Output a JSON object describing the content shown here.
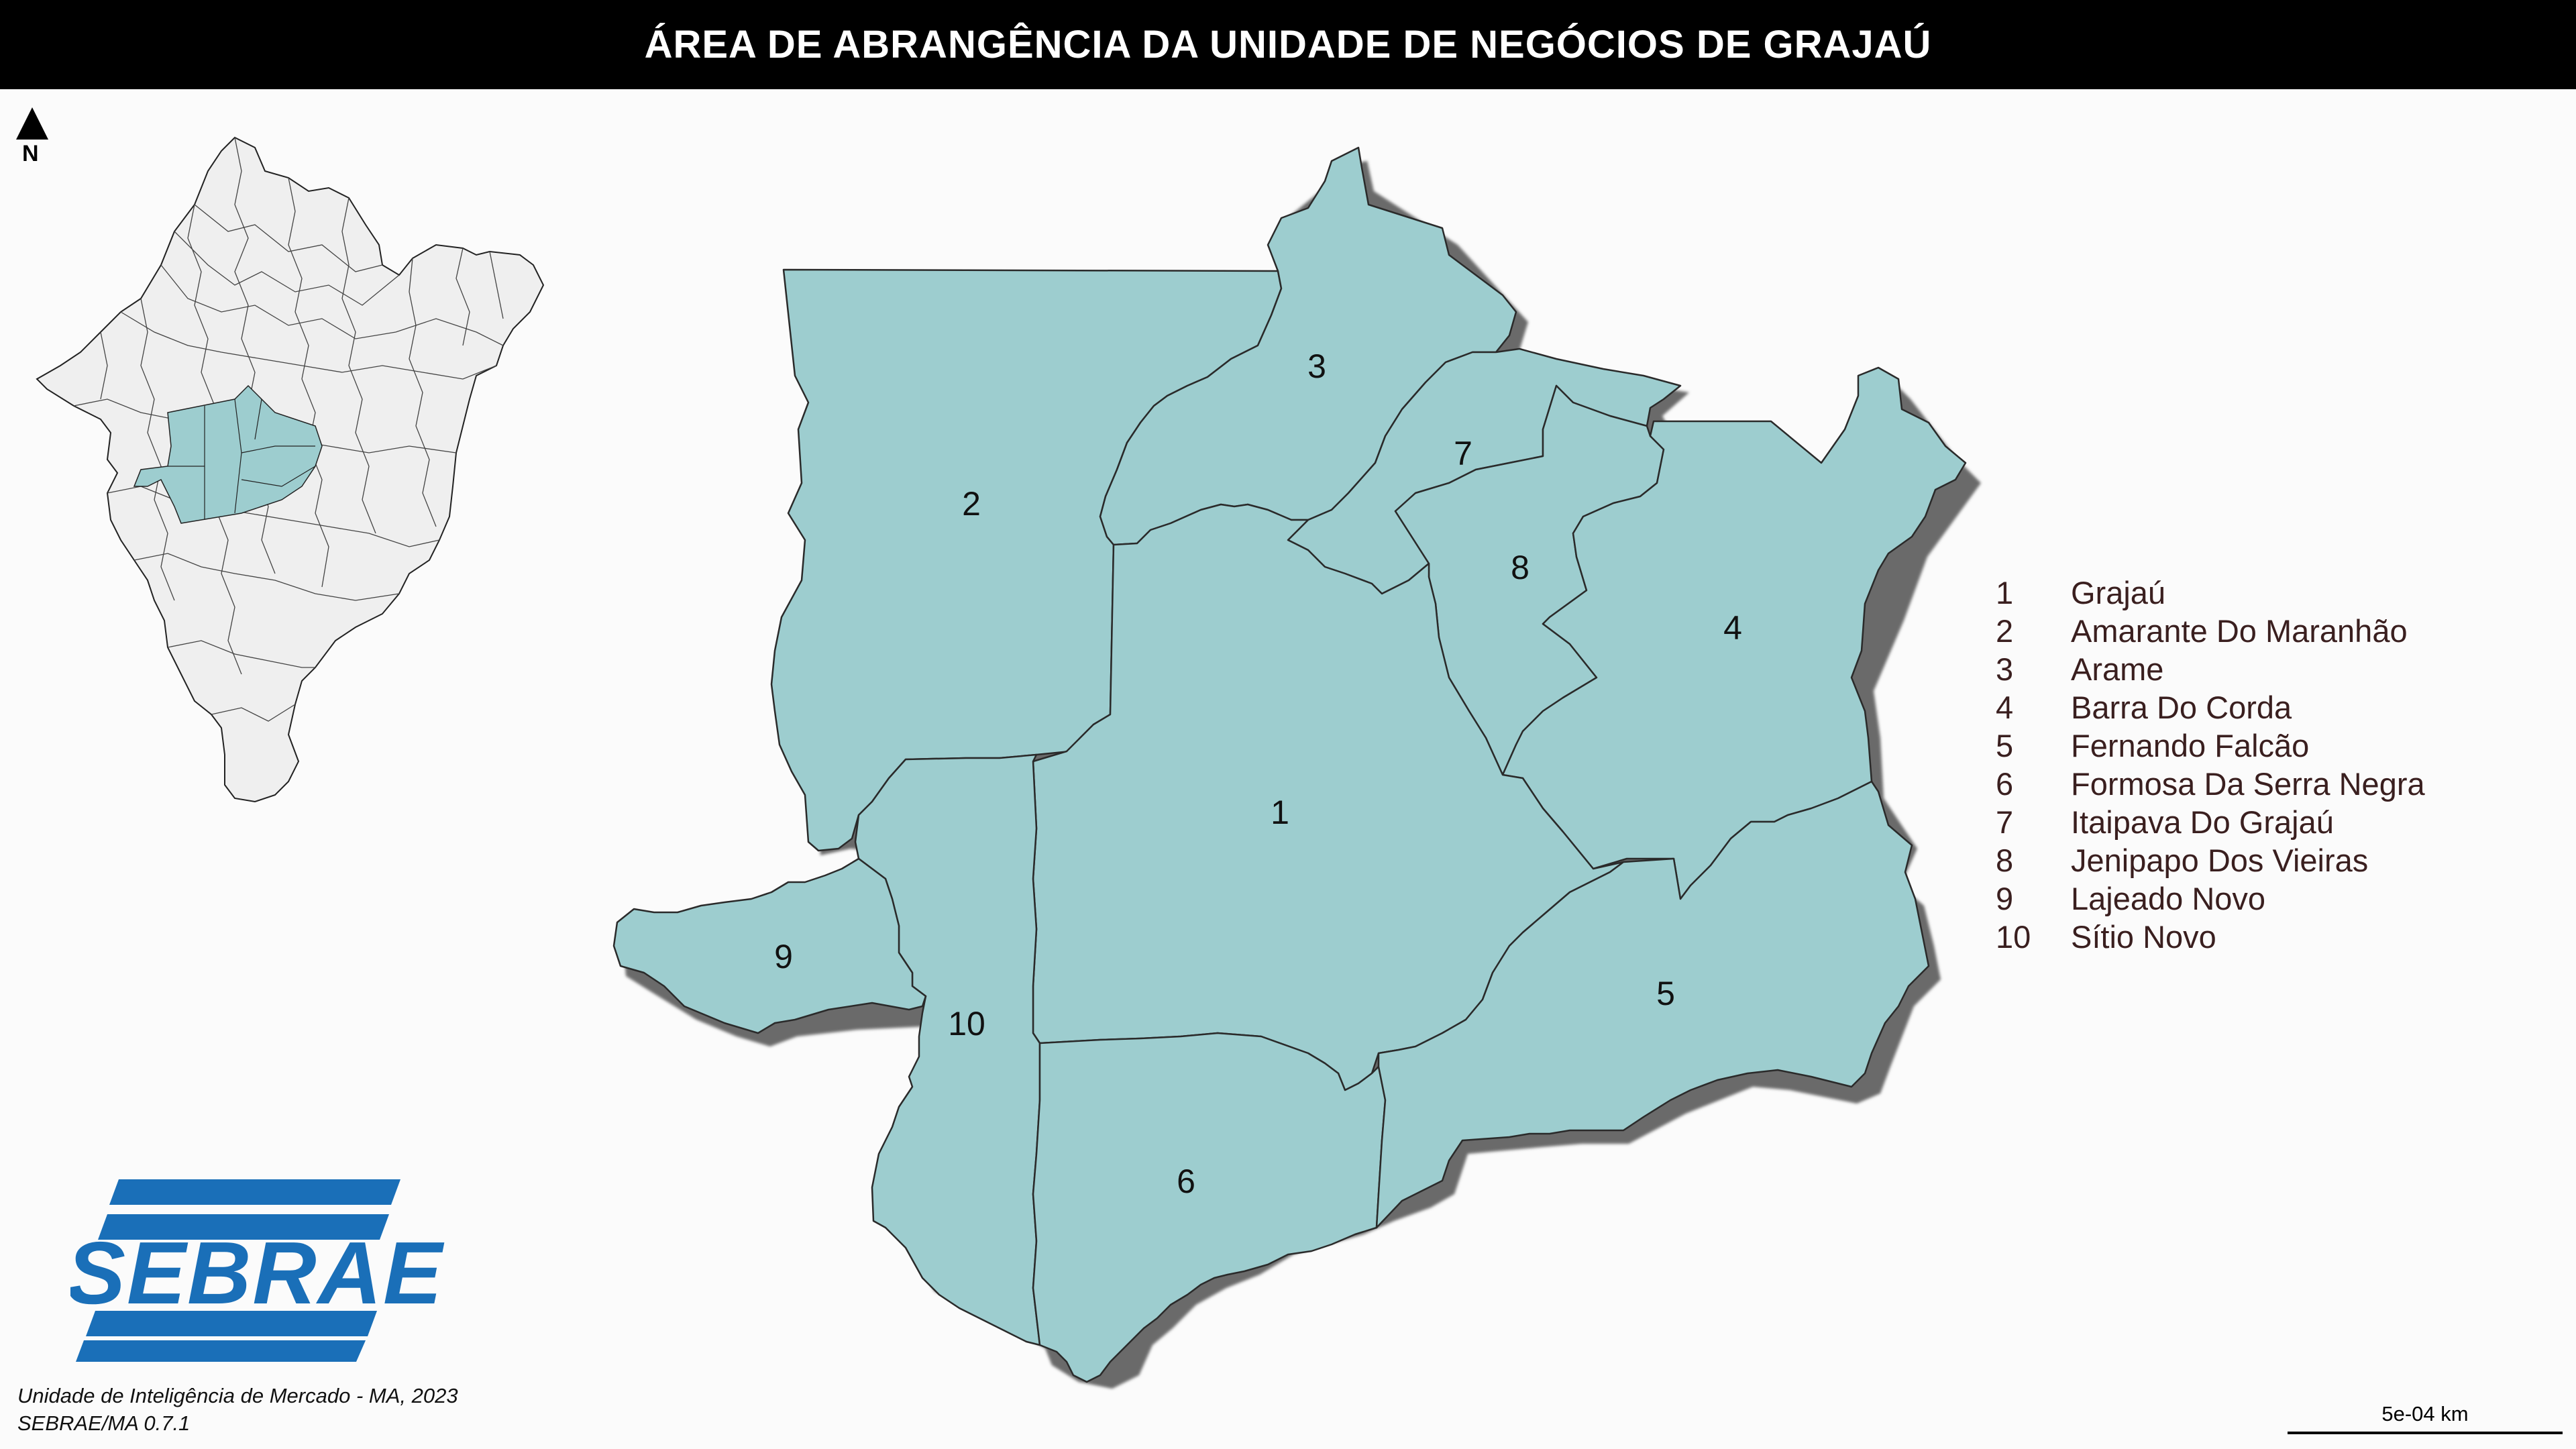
{
  "title": "ÁREA DE ABRANGÊNCIA DA UNIDADE DE NEGÓCIOS DE GRAJAÚ",
  "north": {
    "label": "N",
    "icon": "north-arrow-icon"
  },
  "legend": [
    {
      "num": "1",
      "name": "Grajaú"
    },
    {
      "num": "2",
      "name": "Amarante Do Maranhão"
    },
    {
      "num": "3",
      "name": "Arame"
    },
    {
      "num": "4",
      "name": "Barra Do Corda"
    },
    {
      "num": "5",
      "name": "Fernando Falcão"
    },
    {
      "num": "6",
      "name": "Formosa Da Serra Negra"
    },
    {
      "num": "7",
      "name": "Itaipava Do Grajaú"
    },
    {
      "num": "8",
      "name": "Jenipapo Dos Vieiras"
    },
    {
      "num": "9",
      "name": "Lajeado Novo"
    },
    {
      "num": "10",
      "name": "Sítio Novo"
    }
  ],
  "map_labels": [
    "1",
    "2",
    "3",
    "4",
    "5",
    "6",
    "7",
    "8",
    "9",
    "10"
  ],
  "logo_text": "SEBRAE",
  "credits": {
    "line1": "Unidade de Inteligência de Mercado - MA, 2023",
    "line2": "SEBRAE/MA 0.7.1"
  },
  "scale": {
    "label": "5e-04 km"
  },
  "colors": {
    "region_fill": "#9dcdcf",
    "shadow": "#6a6a6a",
    "inset_fill": "#efefef",
    "logo_blue": "#1a6fb8",
    "title_bg": "#000000",
    "title_text": "#ffffff"
  }
}
